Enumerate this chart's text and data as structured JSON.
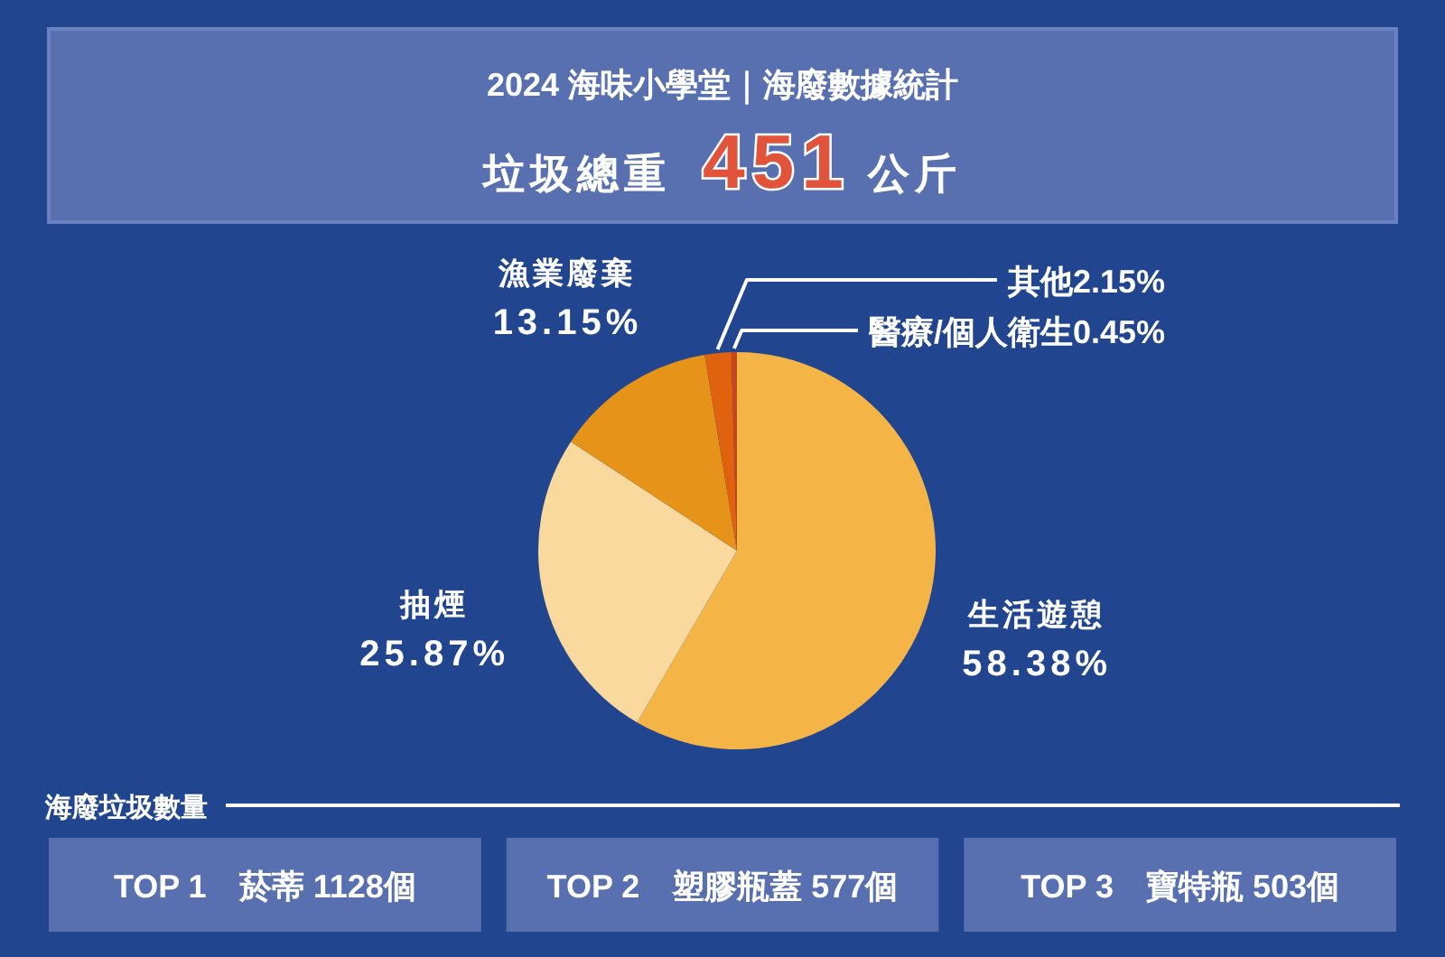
{
  "chart_data": {
    "type": "pie",
    "title": "2024 海味小學堂｜海廢數據統計",
    "subtitle": "垃圾總重 **451** 公斤",
    "categories": [
      "生活遊憩",
      "抽煙",
      "漁業廢棄",
      "其他",
      "醫療/個人衛生"
    ],
    "values": [
      58.38,
      25.87,
      13.15,
      2.15,
      0.45
    ],
    "colors": [
      "#f5b446",
      "#f9d99d",
      "#e59319",
      "#e0620f",
      "#c8461e"
    ],
    "value_labels": [
      "58.38%",
      "25.87%",
      "13.15%",
      "2.15%",
      "0.45%"
    ],
    "annotations": [
      "海廢垃圾數量",
      "TOP 1　菸蒂 1128個",
      "TOP 2　塑膠瓶蓋 577個",
      "TOP 3　寶特瓶 503個"
    ]
  }
}
